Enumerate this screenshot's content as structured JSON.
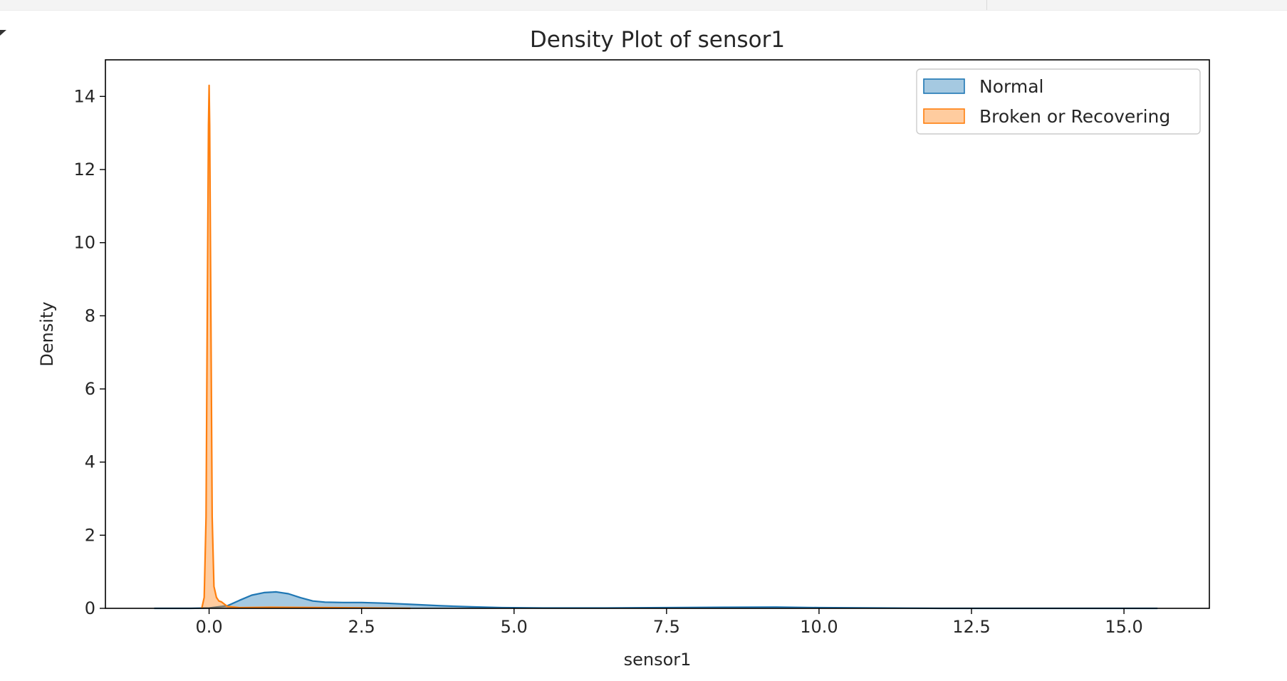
{
  "chart_data": {
    "type": "area",
    "title": "Density Plot of sensor1",
    "xlabel": "sensor1",
    "ylabel": "Density",
    "xlim": [
      -1.7,
      16.4
    ],
    "ylim": [
      0,
      15
    ],
    "xticks": [
      0.0,
      2.5,
      5.0,
      7.5,
      10.0,
      12.5,
      15.0
    ],
    "xtick_labels": [
      "0.0",
      "2.5",
      "5.0",
      "7.5",
      "10.0",
      "12.5",
      "15.0"
    ],
    "yticks": [
      0,
      2,
      4,
      6,
      8,
      10,
      12,
      14
    ],
    "ytick_labels": [
      "0",
      "2",
      "4",
      "6",
      "8",
      "10",
      "12",
      "14"
    ],
    "grid": false,
    "legend": {
      "position": "top-right",
      "entries": [
        "Normal",
        "Broken or Recovering"
      ]
    },
    "series": [
      {
        "name": "Normal",
        "color": "#1f77b4",
        "x": [
          -0.9,
          -0.3,
          0.0,
          0.3,
          0.5,
          0.7,
          0.9,
          1.1,
          1.3,
          1.5,
          1.7,
          1.9,
          2.2,
          2.5,
          2.9,
          3.3,
          3.8,
          4.3,
          4.8,
          5.5,
          6.5,
          7.5,
          8.5,
          9.3,
          10.0,
          11.0,
          12.0,
          13.0,
          14.0,
          15.55
        ],
        "y": [
          0.0,
          0.0,
          0.01,
          0.07,
          0.22,
          0.36,
          0.43,
          0.45,
          0.4,
          0.29,
          0.2,
          0.17,
          0.16,
          0.16,
          0.14,
          0.11,
          0.07,
          0.04,
          0.02,
          0.01,
          0.01,
          0.02,
          0.03,
          0.035,
          0.02,
          0.01,
          0.0,
          0.0,
          0.0,
          0.0
        ]
      },
      {
        "name": "Broken or Recovering",
        "color": "#ff7f0e",
        "x": [
          -0.12,
          -0.08,
          -0.05,
          -0.03,
          -0.01,
          0.0,
          0.01,
          0.03,
          0.05,
          0.08,
          0.12,
          0.16,
          0.2,
          0.3,
          0.5,
          1.0,
          2.0,
          3.3
        ],
        "y": [
          0.0,
          0.3,
          2.5,
          8.0,
          13.2,
          14.3,
          13.2,
          8.0,
          2.5,
          0.6,
          0.3,
          0.2,
          0.18,
          0.05,
          0.02,
          0.03,
          0.02,
          0.0
        ]
      }
    ]
  }
}
